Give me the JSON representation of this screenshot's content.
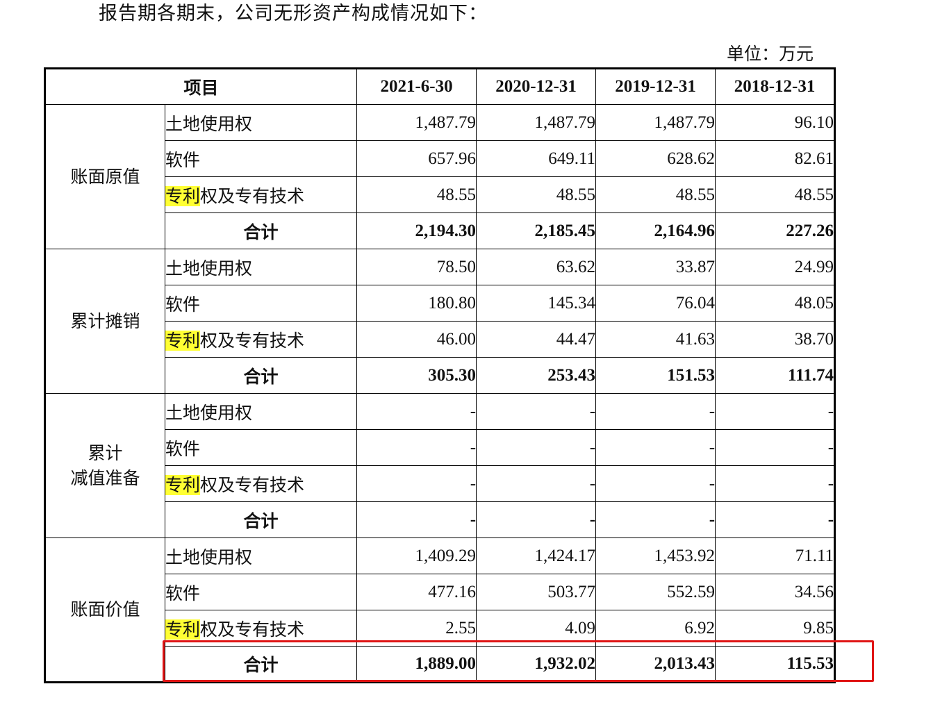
{
  "intro_text": "报告期各期末，公司无形资产构成情况如下：",
  "unit_text": "单位：万元",
  "header": {
    "item": "项目",
    "periods": [
      "2021-6-30",
      "2020-12-31",
      "2019-12-31",
      "2018-12-31"
    ]
  },
  "groups": [
    {
      "label": "账面原值",
      "rows": [
        {
          "item": "土地使用权",
          "values": [
            "1,487.79",
            "1,487.79",
            "1,487.79",
            "96.10"
          ]
        },
        {
          "item": "软件",
          "values": [
            "657.96",
            "649.11",
            "628.62",
            "82.61"
          ]
        },
        {
          "item_highlight": "专利",
          "item_rest": "权及专有技术",
          "values": [
            "48.55",
            "48.55",
            "48.55",
            "48.55"
          ]
        },
        {
          "item": "合计",
          "values": [
            "2,194.30",
            "2,185.45",
            "2,164.96",
            "227.26"
          ]
        }
      ]
    },
    {
      "label": "累计摊销",
      "rows": [
        {
          "item": "土地使用权",
          "values": [
            "78.50",
            "63.62",
            "33.87",
            "24.99"
          ]
        },
        {
          "item": "软件",
          "values": [
            "180.80",
            "145.34",
            "76.04",
            "48.05"
          ]
        },
        {
          "item_highlight": "专利",
          "item_rest": "权及专有技术",
          "values": [
            "46.00",
            "44.47",
            "41.63",
            "38.70"
          ]
        },
        {
          "item": "合计",
          "values": [
            "305.30",
            "253.43",
            "151.53",
            "111.74"
          ]
        }
      ]
    },
    {
      "label_line1": "累计",
      "label_line2": "减值准备",
      "rows": [
        {
          "item": "土地使用权",
          "values": [
            "-",
            "-",
            "-",
            "-"
          ]
        },
        {
          "item": "软件",
          "values": [
            "-",
            "-",
            "-",
            "-"
          ]
        },
        {
          "item_highlight": "专利",
          "item_rest": "权及专有技术",
          "values": [
            "-",
            "-",
            "-",
            "-"
          ]
        },
        {
          "item": "合计",
          "values": [
            "-",
            "-",
            "-",
            "-"
          ]
        }
      ]
    },
    {
      "label": "账面价值",
      "rows": [
        {
          "item": "土地使用权",
          "values": [
            "1,409.29",
            "1,424.17",
            "1,453.92",
            "71.11"
          ]
        },
        {
          "item": "软件",
          "values": [
            "477.16",
            "503.77",
            "552.59",
            "34.56"
          ]
        },
        {
          "item_highlight": "专利",
          "item_rest": "权及专有技术",
          "values": [
            "2.55",
            "4.09",
            "6.92",
            "9.85"
          ]
        },
        {
          "item": "合计",
          "values": [
            "1,889.00",
            "1,932.02",
            "2,013.43",
            "115.53"
          ]
        }
      ]
    }
  ],
  "colors": {
    "highlight": "#ffff33",
    "annotation_box": "#e01515",
    "border": "#000000"
  }
}
